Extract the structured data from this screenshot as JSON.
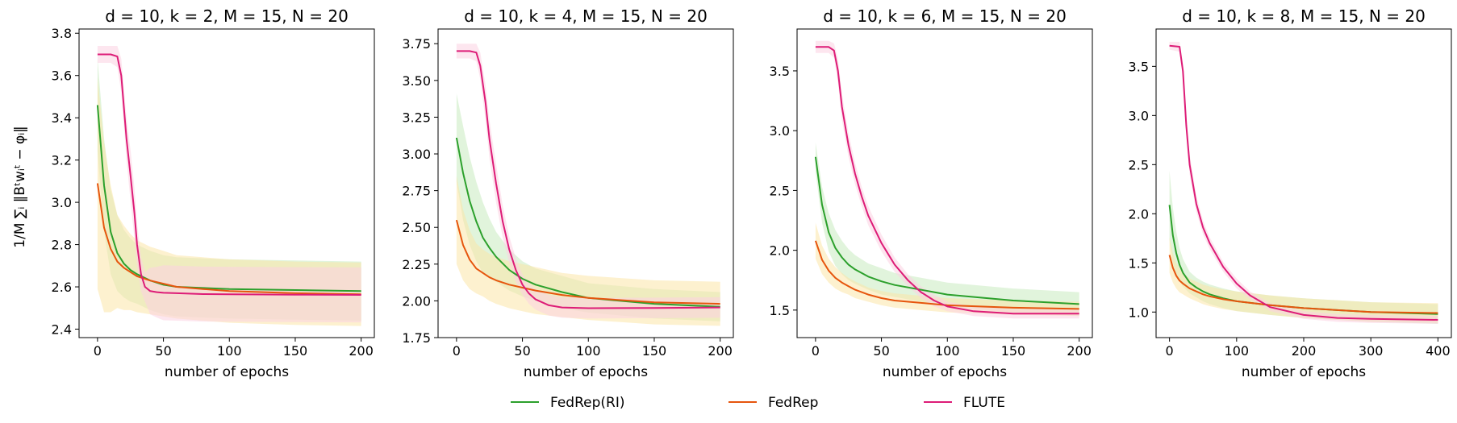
{
  "figure": {
    "ylabel": "1/M ∑ᵢ ‖Bᵗwᵢᵗ − φᵢ‖",
    "legend": [
      {
        "name": "FedRep(RI)",
        "color": "#2ca02c"
      },
      {
        "name": "FedRep",
        "color": "#e6550d"
      },
      {
        "name": "FLUTE",
        "color": "#dd1c77"
      }
    ]
  },
  "chart_data": [
    {
      "type": "line",
      "title": "d = 10, k = 2, M = 15, N = 20",
      "xlabel": "number of epochs",
      "xlim": [
        -14,
        210
      ],
      "ylim": [
        2.36,
        3.82
      ],
      "xticks": [
        0,
        50,
        100,
        150,
        200
      ],
      "yticks": [
        2.4,
        2.6,
        2.8,
        3.0,
        3.2,
        3.4,
        3.6,
        3.8
      ],
      "ytick_labels": [
        "2.4",
        "2.6",
        "2.8",
        "3.0",
        "3.2",
        "3.4",
        "3.6",
        "3.8"
      ],
      "series": [
        {
          "name": "FedRep(RI)",
          "color": "#2ca02c",
          "band_color": "#c9ebc0",
          "x": [
            0,
            5,
            10,
            15,
            20,
            25,
            30,
            40,
            50,
            60,
            80,
            100,
            150,
            200
          ],
          "y": [
            3.46,
            3.08,
            2.86,
            2.76,
            2.71,
            2.68,
            2.66,
            2.63,
            2.61,
            2.6,
            2.595,
            2.59,
            2.585,
            2.58
          ],
          "band": [
            0.22,
            0.22,
            0.2,
            0.18,
            0.16,
            0.15,
            0.14,
            0.14,
            0.14,
            0.14,
            0.14,
            0.14,
            0.14,
            0.14
          ]
        },
        {
          "name": "FedRep",
          "color": "#e6550d",
          "band_color": "#fbe5a8",
          "x": [
            0,
            5,
            10,
            15,
            20,
            25,
            30,
            40,
            50,
            60,
            80,
            100,
            150,
            200
          ],
          "y": [
            3.09,
            2.88,
            2.78,
            2.72,
            2.69,
            2.67,
            2.65,
            2.63,
            2.615,
            2.6,
            2.59,
            2.58,
            2.57,
            2.565
          ],
          "band": [
            0.5,
            0.4,
            0.3,
            0.22,
            0.2,
            0.18,
            0.17,
            0.16,
            0.155,
            0.15,
            0.15,
            0.15,
            0.15,
            0.15
          ]
        },
        {
          "name": "FLUTE",
          "color": "#dd1c77",
          "band_color": "#fbd2e2",
          "x": [
            0,
            10,
            15,
            18,
            22,
            25,
            28,
            30,
            33,
            36,
            40,
            45,
            50,
            60,
            80,
            100,
            150,
            200
          ],
          "y": [
            3.7,
            3.7,
            3.69,
            3.6,
            3.3,
            3.13,
            2.95,
            2.8,
            2.66,
            2.6,
            2.58,
            2.575,
            2.572,
            2.57,
            2.566,
            2.565,
            2.563,
            2.562
          ],
          "band": [
            0.04,
            0.04,
            0.05,
            0.08,
            0.1,
            0.12,
            0.12,
            0.1,
            0.08,
            0.07,
            0.11,
            0.12,
            0.13,
            0.13,
            0.13,
            0.13,
            0.13,
            0.13
          ]
        }
      ]
    },
    {
      "type": "line",
      "title": "d = 10, k = 4, M = 15, N = 20",
      "xlabel": "number of epochs",
      "xlim": [
        -14,
        210
      ],
      "ylim": [
        1.75,
        3.85
      ],
      "xticks": [
        0,
        50,
        100,
        150,
        200
      ],
      "yticks": [
        1.75,
        2.0,
        2.25,
        2.5,
        2.75,
        3.0,
        3.25,
        3.5,
        3.75
      ],
      "ytick_labels": [
        "1.75",
        "2.00",
        "2.25",
        "2.50",
        "2.75",
        "3.00",
        "3.25",
        "3.50",
        "3.75"
      ],
      "series": [
        {
          "name": "FedRep(RI)",
          "color": "#2ca02c",
          "band_color": "#c9ebc0",
          "x": [
            0,
            5,
            10,
            15,
            20,
            25,
            30,
            40,
            50,
            60,
            80,
            100,
            150,
            200
          ],
          "y": [
            3.11,
            2.87,
            2.68,
            2.54,
            2.43,
            2.36,
            2.3,
            2.21,
            2.15,
            2.11,
            2.06,
            2.02,
            1.98,
            1.96
          ],
          "band": [
            0.3,
            0.32,
            0.3,
            0.27,
            0.24,
            0.2,
            0.17,
            0.14,
            0.12,
            0.11,
            0.11,
            0.1,
            0.1,
            0.1
          ]
        },
        {
          "name": "FedRep",
          "color": "#e6550d",
          "band_color": "#fbe5a8",
          "x": [
            0,
            5,
            10,
            15,
            20,
            25,
            30,
            40,
            50,
            60,
            80,
            100,
            150,
            200
          ],
          "y": [
            2.55,
            2.38,
            2.28,
            2.22,
            2.19,
            2.16,
            2.14,
            2.11,
            2.09,
            2.07,
            2.04,
            2.02,
            1.99,
            1.98
          ],
          "band": [
            0.3,
            0.24,
            0.2,
            0.17,
            0.16,
            0.16,
            0.16,
            0.16,
            0.16,
            0.16,
            0.15,
            0.15,
            0.15,
            0.15
          ]
        },
        {
          "name": "FLUTE",
          "color": "#dd1c77",
          "band_color": "#fbd2e2",
          "x": [
            0,
            10,
            15,
            18,
            22,
            25,
            30,
            35,
            40,
            45,
            50,
            55,
            60,
            70,
            80,
            100,
            150,
            200
          ],
          "y": [
            3.7,
            3.7,
            3.69,
            3.6,
            3.35,
            3.1,
            2.8,
            2.54,
            2.35,
            2.21,
            2.11,
            2.05,
            2.01,
            1.97,
            1.955,
            1.95,
            1.952,
            1.955
          ],
          "band": [
            0.05,
            0.05,
            0.06,
            0.09,
            0.12,
            0.13,
            0.13,
            0.11,
            0.09,
            0.08,
            0.07,
            0.07,
            0.07,
            0.07,
            0.07,
            0.07,
            0.07,
            0.07
          ]
        }
      ]
    },
    {
      "type": "line",
      "title": "d = 10, k = 6, M = 15, N = 20",
      "xlabel": "number of epochs",
      "xlim": [
        -14,
        210
      ],
      "ylim": [
        1.27,
        3.85
      ],
      "xticks": [
        0,
        50,
        100,
        150,
        200
      ],
      "yticks": [
        1.5,
        2.0,
        2.5,
        3.0,
        3.5
      ],
      "ytick_labels": [
        "1.5",
        "2.0",
        "2.5",
        "3.0",
        "3.5"
      ],
      "series": [
        {
          "name": "FedRep(RI)",
          "color": "#2ca02c",
          "band_color": "#c9ebc0",
          "x": [
            0,
            5,
            10,
            15,
            20,
            25,
            30,
            40,
            50,
            60,
            80,
            100,
            150,
            200
          ],
          "y": [
            2.78,
            2.38,
            2.15,
            2.02,
            1.94,
            1.88,
            1.84,
            1.78,
            1.74,
            1.71,
            1.67,
            1.63,
            1.58,
            1.55
          ],
          "band": [
            0.12,
            0.15,
            0.16,
            0.15,
            0.14,
            0.13,
            0.12,
            0.11,
            0.11,
            0.1,
            0.1,
            0.1,
            0.1,
            0.1
          ]
        },
        {
          "name": "FedRep",
          "color": "#e6550d",
          "band_color": "#fbe5a8",
          "x": [
            0,
            5,
            10,
            15,
            20,
            25,
            30,
            40,
            50,
            60,
            80,
            100,
            150,
            200
          ],
          "y": [
            2.08,
            1.92,
            1.83,
            1.77,
            1.73,
            1.7,
            1.67,
            1.63,
            1.6,
            1.58,
            1.56,
            1.54,
            1.52,
            1.51
          ],
          "band": [
            0.15,
            0.12,
            0.1,
            0.09,
            0.08,
            0.07,
            0.07,
            0.06,
            0.06,
            0.06,
            0.06,
            0.06,
            0.06,
            0.06
          ]
        },
        {
          "name": "FLUTE",
          "color": "#dd1c77",
          "band_color": "#fbd2e2",
          "x": [
            0,
            10,
            14,
            17,
            20,
            25,
            30,
            35,
            40,
            50,
            60,
            70,
            80,
            90,
            100,
            120,
            150,
            200
          ],
          "y": [
            3.7,
            3.7,
            3.67,
            3.5,
            3.2,
            2.88,
            2.64,
            2.45,
            2.29,
            2.06,
            1.88,
            1.75,
            1.65,
            1.58,
            1.53,
            1.49,
            1.47,
            1.47
          ],
          "band": [
            0.05,
            0.05,
            0.06,
            0.1,
            0.11,
            0.1,
            0.09,
            0.08,
            0.08,
            0.07,
            0.06,
            0.05,
            0.05,
            0.05,
            0.04,
            0.04,
            0.04,
            0.04
          ]
        }
      ]
    },
    {
      "type": "line",
      "title": "d = 10, k = 8, M = 15, N = 20",
      "xlabel": "number of epochs",
      "xlim": [
        -20,
        420
      ],
      "ylim": [
        0.74,
        3.88
      ],
      "xticks": [
        0,
        100,
        200,
        300,
        400
      ],
      "yticks": [
        1.0,
        1.5,
        2.0,
        2.5,
        3.0,
        3.5
      ],
      "ytick_labels": [
        "1.0",
        "1.5",
        "2.0",
        "2.5",
        "3.0",
        "3.5"
      ],
      "series": [
        {
          "name": "FedRep(RI)",
          "color": "#2ca02c",
          "band_color": "#c9ebc0",
          "x": [
            0,
            5,
            10,
            15,
            20,
            30,
            40,
            50,
            60,
            80,
            100,
            150,
            200,
            300,
            400
          ],
          "y": [
            2.09,
            1.78,
            1.6,
            1.48,
            1.4,
            1.3,
            1.25,
            1.21,
            1.18,
            1.14,
            1.11,
            1.07,
            1.04,
            1.0,
            0.98
          ],
          "band": [
            0.35,
            0.28,
            0.22,
            0.17,
            0.14,
            0.11,
            0.1,
            0.1,
            0.1,
            0.1,
            0.1,
            0.1,
            0.1,
            0.1,
            0.1
          ]
        },
        {
          "name": "FedRep",
          "color": "#e6550d",
          "band_color": "#fbe5a8",
          "x": [
            0,
            5,
            10,
            15,
            20,
            30,
            40,
            50,
            60,
            80,
            100,
            150,
            200,
            300,
            400
          ],
          "y": [
            1.58,
            1.45,
            1.37,
            1.32,
            1.29,
            1.24,
            1.21,
            1.18,
            1.16,
            1.13,
            1.11,
            1.07,
            1.04,
            1.0,
            0.99
          ],
          "band": [
            0.18,
            0.15,
            0.13,
            0.12,
            0.11,
            0.1,
            0.1,
            0.1,
            0.1,
            0.1,
            0.1,
            0.1,
            0.1,
            0.1,
            0.1
          ]
        },
        {
          "name": "FLUTE",
          "color": "#dd1c77",
          "band_color": "#fbd2e2",
          "x": [
            0,
            15,
            20,
            25,
            30,
            40,
            50,
            60,
            80,
            100,
            120,
            150,
            200,
            250,
            300,
            400
          ],
          "y": [
            3.71,
            3.7,
            3.45,
            2.9,
            2.5,
            2.1,
            1.86,
            1.7,
            1.46,
            1.29,
            1.17,
            1.05,
            0.97,
            0.94,
            0.93,
            0.92
          ],
          "band": [
            0.04,
            0.05,
            0.08,
            0.1,
            0.1,
            0.08,
            0.07,
            0.06,
            0.05,
            0.05,
            0.04,
            0.04,
            0.04,
            0.04,
            0.04,
            0.04
          ]
        }
      ]
    }
  ]
}
